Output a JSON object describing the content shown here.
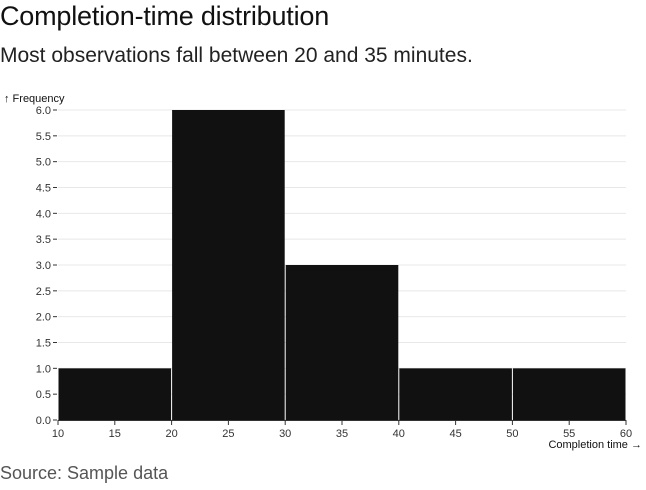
{
  "header": {
    "title": "Completion-time distribution",
    "subtitle": "Most observations fall between 20 and 35 minutes."
  },
  "footer": {
    "source": "Source: Sample data"
  },
  "chart_data": {
    "type": "bar",
    "histogram": true,
    "bins": [
      {
        "x0": 10,
        "x1": 20,
        "value": 1
      },
      {
        "x0": 20,
        "x1": 30,
        "value": 6
      },
      {
        "x0": 30,
        "x1": 40,
        "value": 3
      },
      {
        "x0": 40,
        "x1": 50,
        "value": 1
      },
      {
        "x0": 50,
        "x1": 60,
        "value": 1
      }
    ],
    "xlabel": "Completion time →",
    "ylabel": "↑ Frequency",
    "xlim": [
      10,
      60
    ],
    "ylim": [
      0,
      6
    ],
    "xticks": [
      10,
      15,
      20,
      25,
      30,
      35,
      40,
      45,
      50,
      55,
      60
    ],
    "yticks": [
      0.0,
      0.5,
      1.0,
      1.5,
      2.0,
      2.5,
      3.0,
      3.5,
      4.0,
      4.5,
      5.0,
      5.5,
      6.0
    ],
    "grid": true,
    "bar_color": "#111111",
    "grid_color": "#e8e8e8"
  }
}
